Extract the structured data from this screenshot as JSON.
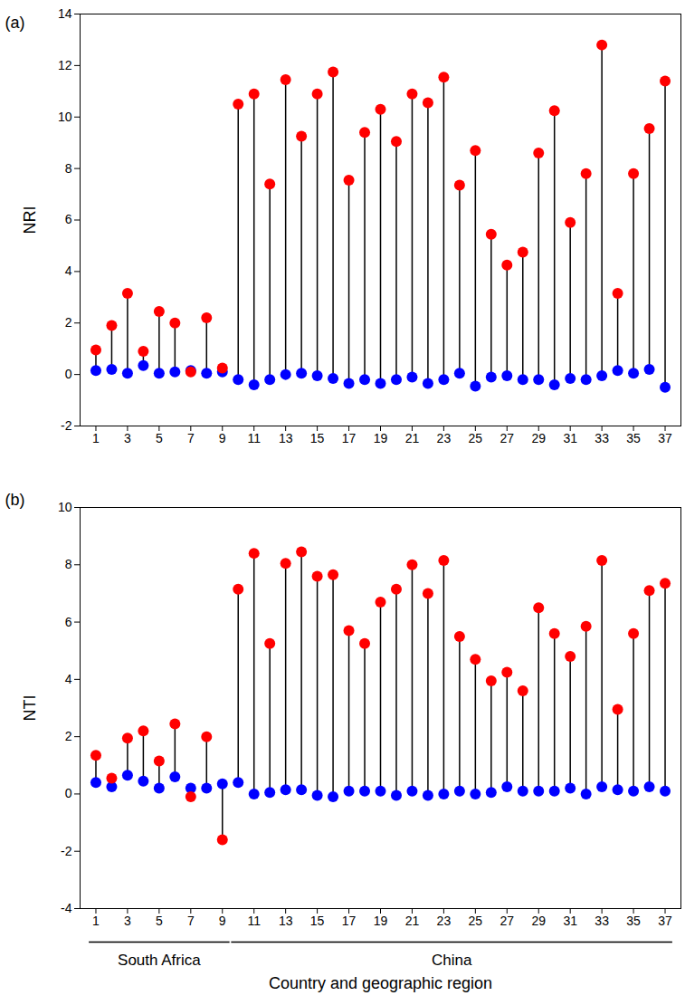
{
  "chart_data": [
    {
      "type": "lollipop",
      "panel_label": "(a)",
      "ylabel": "NRI",
      "x": [
        1,
        2,
        3,
        4,
        5,
        6,
        7,
        8,
        9,
        10,
        11,
        12,
        13,
        14,
        15,
        16,
        17,
        18,
        19,
        20,
        21,
        22,
        23,
        24,
        25,
        26,
        27,
        28,
        29,
        30,
        31,
        32,
        33,
        34,
        35,
        36,
        37
      ],
      "xlim": [
        0,
        38
      ],
      "xticks": [
        1,
        3,
        5,
        7,
        9,
        11,
        13,
        15,
        17,
        19,
        21,
        23,
        25,
        27,
        29,
        31,
        33,
        35,
        37
      ],
      "ylim": [
        -2,
        14
      ],
      "yticks": [
        -2,
        0,
        2,
        4,
        6,
        8,
        10,
        12,
        14
      ],
      "grid": false,
      "series": [
        {
          "color": "#ff0000",
          "values": [
            0.95,
            1.9,
            3.15,
            0.9,
            2.45,
            2.0,
            0.1,
            2.2,
            0.25,
            10.5,
            10.9,
            7.4,
            11.45,
            9.25,
            10.9,
            11.75,
            7.55,
            9.4,
            10.3,
            9.05,
            10.9,
            10.55,
            11.55,
            7.35,
            8.7,
            5.45,
            4.25,
            4.75,
            8.6,
            10.25,
            5.9,
            7.8,
            12.8,
            3.15,
            7.8,
            9.55,
            11.4
          ]
        },
        {
          "color": "#0000ff",
          "values": [
            0.15,
            0.2,
            0.05,
            0.35,
            0.05,
            0.1,
            0.15,
            0.05,
            0.1,
            -0.2,
            -0.4,
            -0.2,
            0.0,
            0.05,
            -0.05,
            -0.15,
            -0.35,
            -0.2,
            -0.35,
            -0.2,
            -0.1,
            -0.35,
            -0.2,
            0.05,
            -0.45,
            -0.1,
            -0.05,
            -0.2,
            -0.2,
            -0.4,
            -0.15,
            -0.2,
            -0.05,
            0.15,
            0.05,
            0.2,
            -0.5
          ]
        }
      ]
    },
    {
      "type": "lollipop",
      "panel_label": "(b)",
      "ylabel": "NTI",
      "xlabel": "Country and geographic region",
      "x": [
        1,
        2,
        3,
        4,
        5,
        6,
        7,
        8,
        9,
        10,
        11,
        12,
        13,
        14,
        15,
        16,
        17,
        18,
        19,
        20,
        21,
        22,
        23,
        24,
        25,
        26,
        27,
        28,
        29,
        30,
        31,
        32,
        33,
        34,
        35,
        36,
        37
      ],
      "xlim": [
        0,
        38
      ],
      "xticks": [
        1,
        3,
        5,
        7,
        9,
        11,
        13,
        15,
        17,
        19,
        21,
        23,
        25,
        27,
        29,
        31,
        33,
        35,
        37
      ],
      "ylim": [
        -4,
        10
      ],
      "yticks": [
        -4,
        -2,
        0,
        2,
        4,
        6,
        8,
        10
      ],
      "grid": false,
      "series": [
        {
          "color": "#ff0000",
          "values": [
            1.35,
            0.55,
            1.95,
            2.2,
            1.15,
            2.45,
            -0.1,
            2.0,
            -1.6,
            7.15,
            8.4,
            5.25,
            8.05,
            8.45,
            7.6,
            7.65,
            5.7,
            5.25,
            6.7,
            7.15,
            8.0,
            7.0,
            8.15,
            5.5,
            4.7,
            3.95,
            4.25,
            3.6,
            6.5,
            5.6,
            4.8,
            5.85,
            8.15,
            2.95,
            5.6,
            7.1,
            7.35
          ]
        },
        {
          "color": "#0000ff",
          "values": [
            0.4,
            0.25,
            0.65,
            0.45,
            0.2,
            0.6,
            0.2,
            0.2,
            0.35,
            0.4,
            0.0,
            0.05,
            0.15,
            0.15,
            -0.05,
            -0.1,
            0.1,
            0.1,
            0.1,
            -0.05,
            0.1,
            -0.05,
            0.0,
            0.1,
            0.0,
            0.05,
            0.25,
            0.1,
            0.1,
            0.1,
            0.2,
            0.0,
            0.25,
            0.15,
            0.1,
            0.25,
            0.1
          ]
        }
      ],
      "groups": [
        {
          "label": "South Africa",
          "x_range": [
            1,
            9
          ]
        },
        {
          "label": "China",
          "x_range": [
            10,
            37
          ]
        }
      ]
    }
  ]
}
